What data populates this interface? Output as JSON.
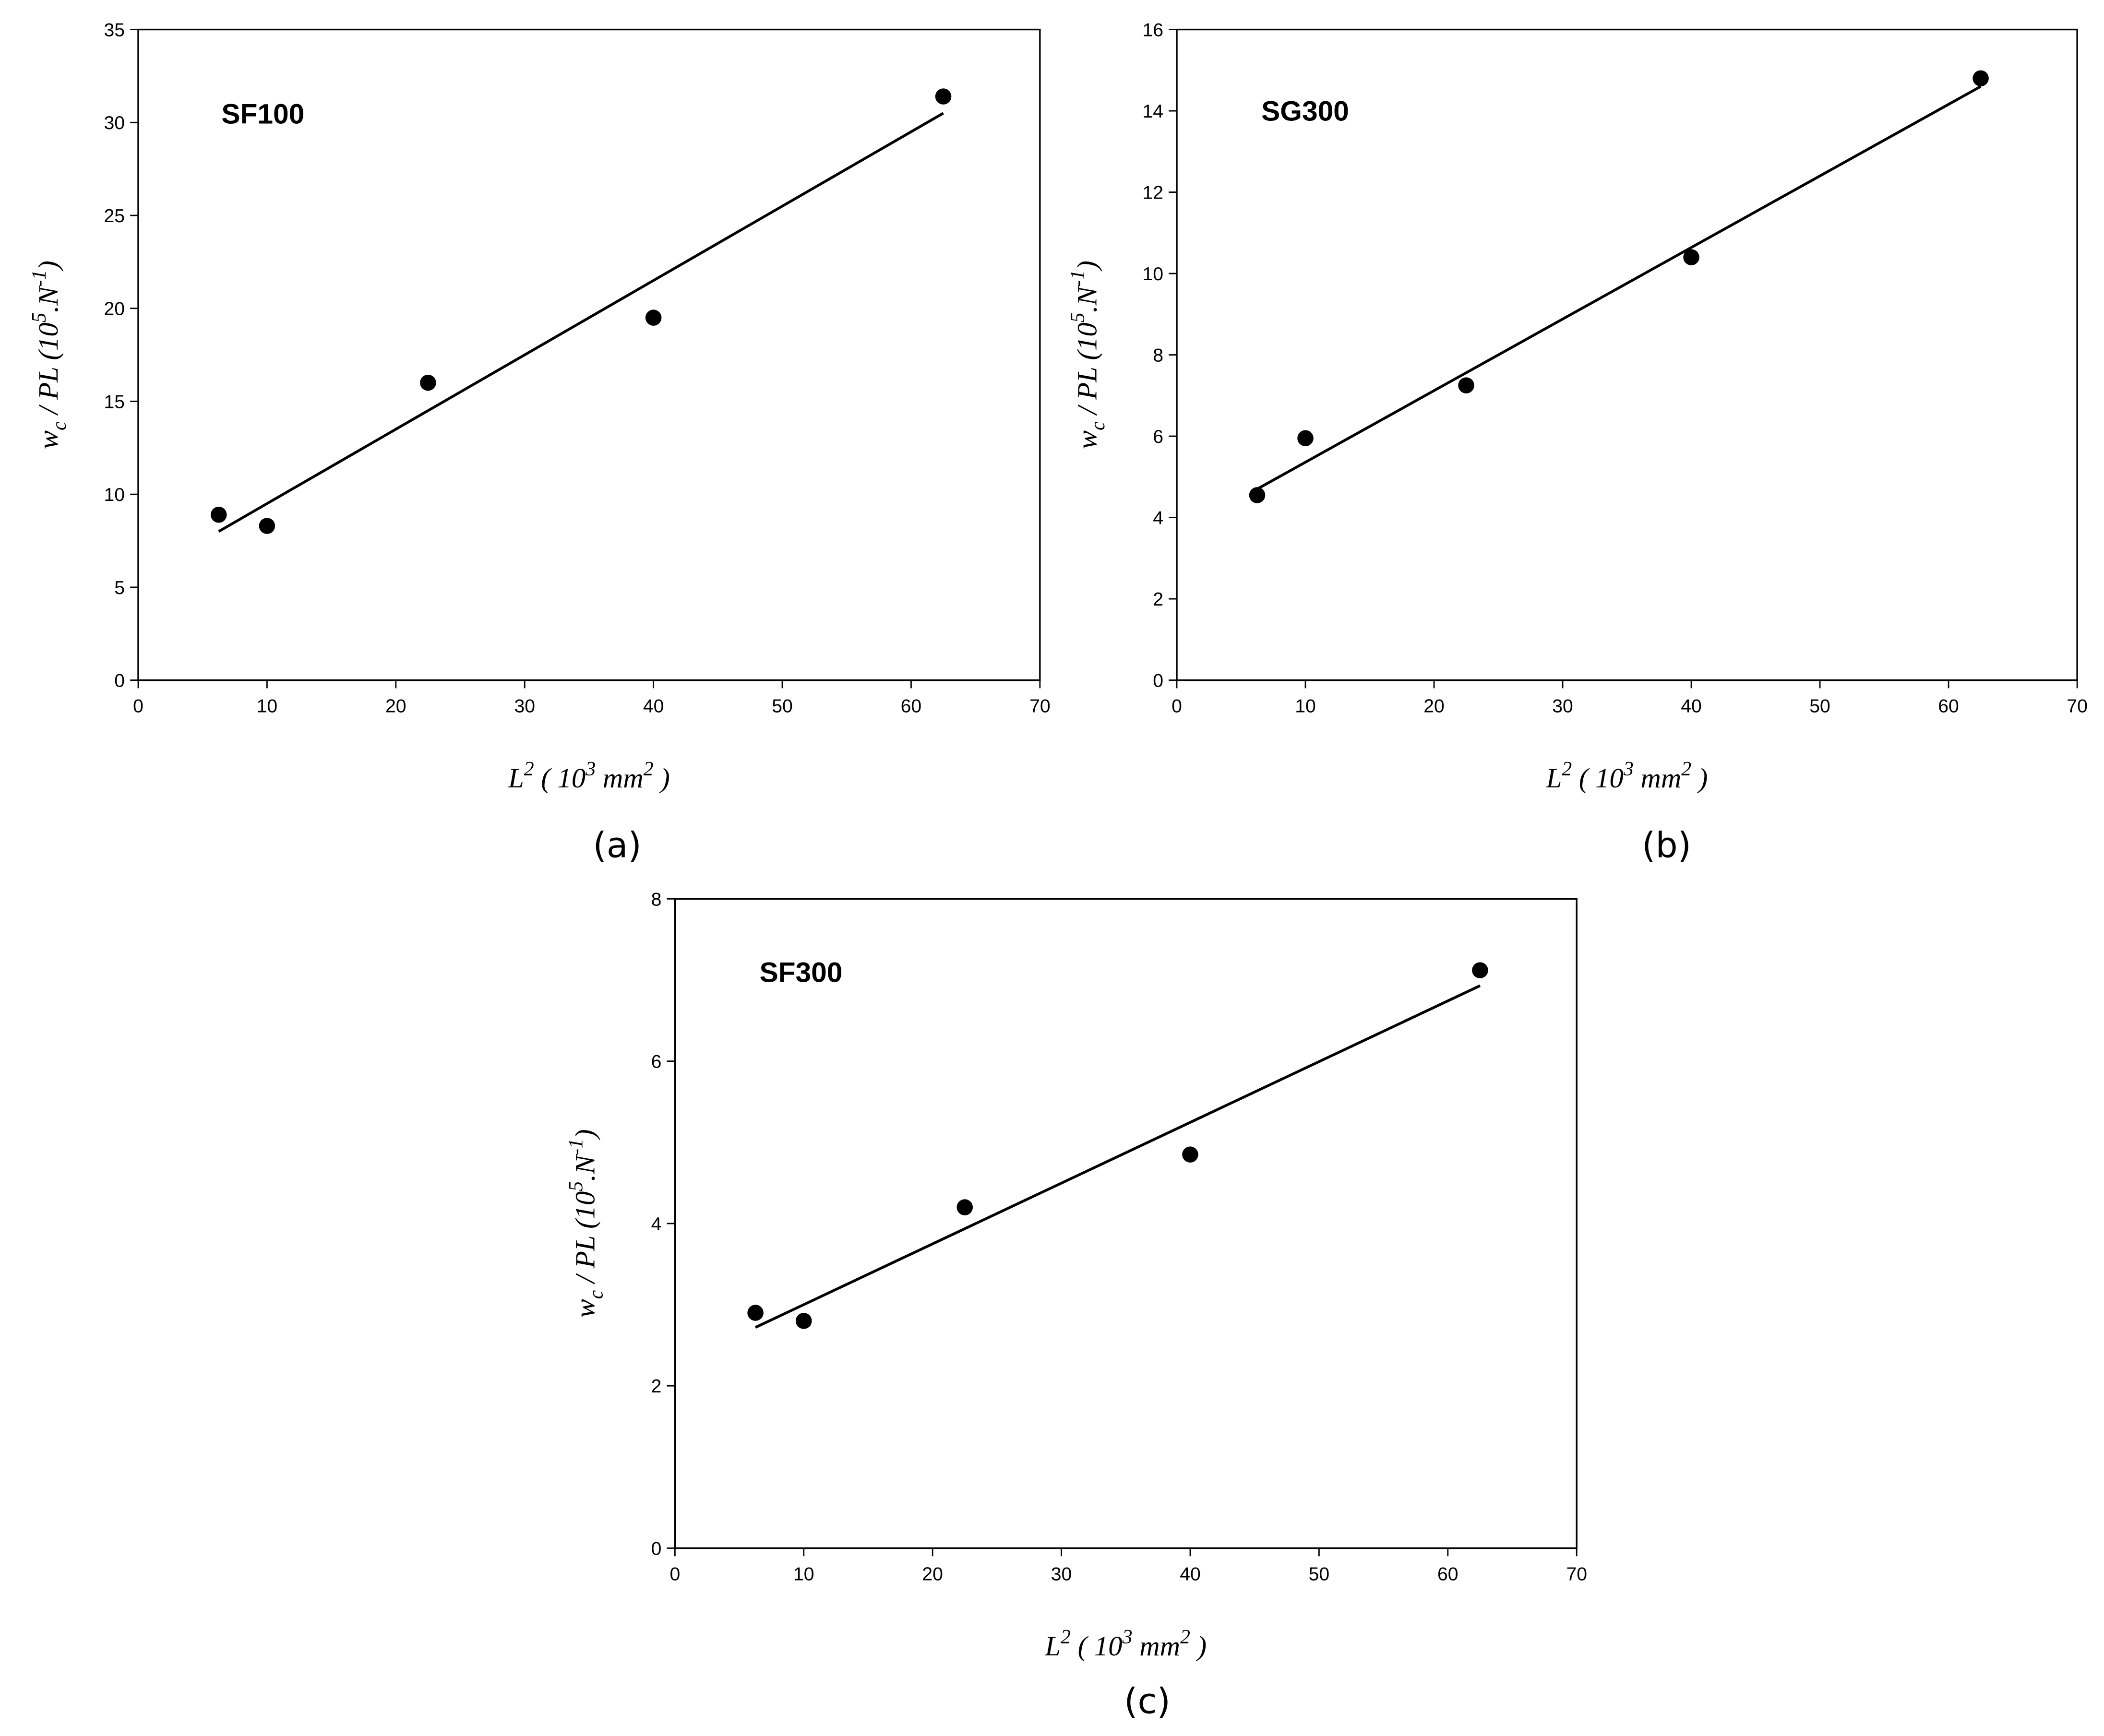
{
  "chart_data": [
    {
      "type": "scatter",
      "annotation": "SF100",
      "panel": "(a)",
      "xlabel": [
        "L",
        "2",
        " ( 10",
        "3",
        " mm",
        "2",
        " )"
      ],
      "ylabel": [
        "w",
        "c",
        " / PL  (10",
        "5",
        ".N",
        "-1",
        ")"
      ],
      "x": [
        6.25,
        10,
        22.5,
        40,
        62.5
      ],
      "values": [
        8.9,
        8.3,
        16.0,
        19.5,
        31.4
      ],
      "fit": {
        "x": [
          6.25,
          62.5
        ],
        "values": [
          8.0,
          30.5
        ]
      },
      "color": "#000000",
      "xlim": [
        0,
        70
      ],
      "ylim": [
        0,
        35
      ],
      "xticks": [
        0,
        10,
        20,
        30,
        40,
        50,
        60,
        70
      ],
      "yticks": [
        0,
        5,
        10,
        15,
        20,
        25,
        30,
        35
      ]
    },
    {
      "type": "scatter",
      "annotation": "SG300",
      "panel": "(b)",
      "xlabel": [
        "L",
        "2",
        " ( 10",
        "3",
        " mm",
        "2",
        " )"
      ],
      "ylabel": [
        "w",
        "c",
        " / PL  (10",
        "5",
        ".N",
        "-1",
        ")"
      ],
      "x": [
        6.25,
        10,
        22.5,
        40,
        62.5
      ],
      "values": [
        4.55,
        5.95,
        7.25,
        10.4,
        14.8
      ],
      "fit": {
        "x": [
          6.25,
          62.5
        ],
        "values": [
          4.7,
          14.6
        ]
      },
      "color": "#000000",
      "xlim": [
        0,
        70
      ],
      "ylim": [
        0,
        16
      ],
      "xticks": [
        0,
        10,
        20,
        30,
        40,
        50,
        60,
        70
      ],
      "yticks": [
        0,
        2,
        4,
        6,
        8,
        10,
        12,
        14,
        16
      ]
    },
    {
      "type": "scatter",
      "annotation": "SF300",
      "panel": "(c)",
      "xlabel": [
        "L",
        "2",
        " ( 10",
        "3",
        " mm",
        "2",
        " )"
      ],
      "ylabel": [
        "w",
        "c",
        " / PL  (10",
        "5",
        ".N",
        "-1",
        ")"
      ],
      "x": [
        6.25,
        10,
        22.5,
        40,
        62.5
      ],
      "values": [
        2.9,
        2.8,
        4.2,
        4.85,
        7.12
      ],
      "fit": {
        "x": [
          6.25,
          62.5
        ],
        "values": [
          2.72,
          6.93
        ]
      },
      "color": "#000000",
      "xlim": [
        0,
        70
      ],
      "ylim": [
        0,
        8
      ],
      "xticks": [
        0,
        10,
        20,
        30,
        40,
        50,
        60,
        70
      ],
      "yticks": [
        0,
        2,
        4,
        6,
        8
      ]
    }
  ]
}
